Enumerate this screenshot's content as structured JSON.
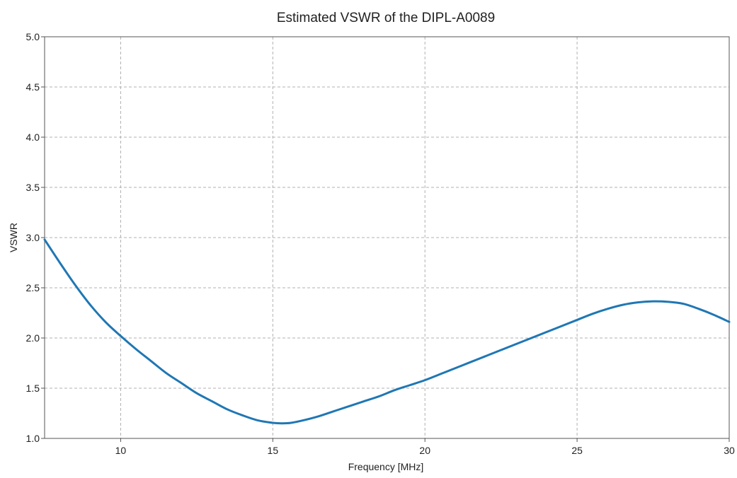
{
  "chart_data": {
    "type": "line",
    "title": "Estimated VSWR of the DIPL-A0089",
    "xlabel": "Frequency [MHz]",
    "ylabel": "VSWR",
    "xlim": [
      7.5,
      30
    ],
    "ylim": [
      1.0,
      5.0
    ],
    "xticks": [
      10,
      15,
      20,
      25,
      30
    ],
    "yticks": [
      1.0,
      1.5,
      2.0,
      2.5,
      3.0,
      3.5,
      4.0,
      4.5,
      5.0
    ],
    "ytick_labels": [
      "1.0",
      "1.5",
      "2.0",
      "2.5",
      "3.0",
      "3.5",
      "4.0",
      "4.5",
      "5.0"
    ],
    "grid": true,
    "series": [
      {
        "color": "#1f77b4",
        "x": [
          7.5,
          8.0,
          8.5,
          9.0,
          9.5,
          10.0,
          10.5,
          11.0,
          11.5,
          12.0,
          12.5,
          13.0,
          13.5,
          14.0,
          14.5,
          15.0,
          15.3,
          15.6,
          16.0,
          16.5,
          17.0,
          17.5,
          18.0,
          18.5,
          19.0,
          19.5,
          20.0,
          20.5,
          21.0,
          21.5,
          22.0,
          22.5,
          23.0,
          23.5,
          24.0,
          24.5,
          25.0,
          25.5,
          26.0,
          26.5,
          27.0,
          27.5,
          28.0,
          28.5,
          29.0,
          29.5,
          30.0
        ],
        "y": [
          2.98,
          2.75,
          2.53,
          2.33,
          2.16,
          2.02,
          1.89,
          1.77,
          1.65,
          1.55,
          1.45,
          1.37,
          1.29,
          1.23,
          1.18,
          1.155,
          1.15,
          1.155,
          1.18,
          1.22,
          1.27,
          1.32,
          1.37,
          1.42,
          1.48,
          1.53,
          1.58,
          1.64,
          1.7,
          1.76,
          1.82,
          1.88,
          1.94,
          2.0,
          2.06,
          2.12,
          2.18,
          2.24,
          2.29,
          2.33,
          2.355,
          2.365,
          2.36,
          2.34,
          2.29,
          2.23,
          2.16
        ]
      }
    ]
  }
}
